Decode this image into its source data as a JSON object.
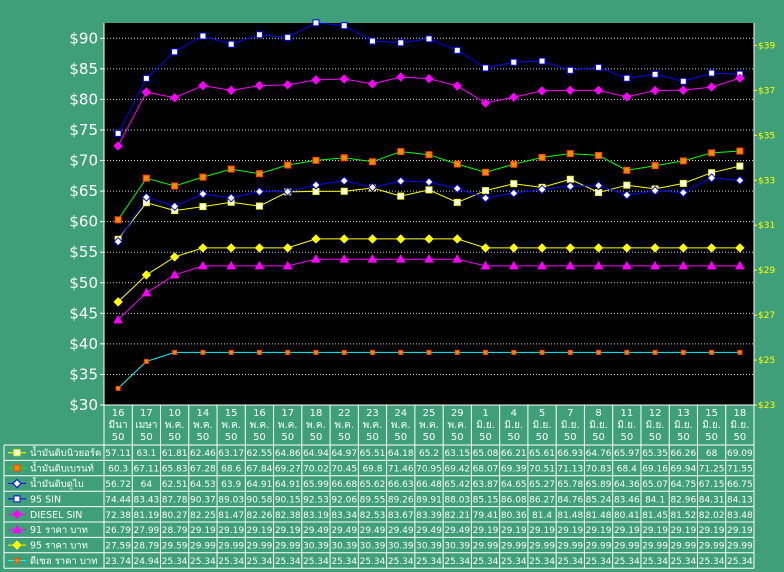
{
  "colors": {
    "background": "#3f9f78",
    "plot": "#000000",
    "grid": "#ffffff",
    "left_axis_text": "#ffffff",
    "right_axis_text": "#ffff00"
  },
  "chart_data": {
    "type": "line",
    "title": "",
    "xlabel": "",
    "ylabel": "",
    "ylim": [
      30,
      92.5
    ],
    "y_ticks": [
      "$30",
      "$35",
      "$40",
      "$45",
      "$50",
      "$55",
      "$60",
      "$65",
      "$70",
      "$75",
      "$80",
      "$85",
      "$90"
    ],
    "y2lim": [
      23,
      40
    ],
    "y2_ticks": [
      "$23",
      "$25",
      "$27",
      "$29",
      "$31",
      "$33",
      "$35",
      "$37",
      "$39"
    ],
    "grid": true,
    "legend": "bottom data table",
    "categories": [
      [
        "16",
        "มีนา",
        "50"
      ],
      [
        "17",
        "เมษา",
        "50"
      ],
      [
        "10",
        "พ.ค.",
        "50"
      ],
      [
        "14",
        "พ.ค.",
        "50"
      ],
      [
        "15",
        "พ.ค.",
        "50"
      ],
      [
        "16",
        "พ.ค.",
        "50"
      ],
      [
        "17",
        "พ.ค.",
        "50"
      ],
      [
        "18",
        "พ.ค.",
        "50"
      ],
      [
        "22",
        "พ.ค.",
        "50"
      ],
      [
        "23",
        "พ.ค.",
        "50"
      ],
      [
        "24",
        "พ.ค.",
        "50"
      ],
      [
        "25",
        "พ.ค.",
        "50"
      ],
      [
        "29",
        "พ.ค.",
        "50"
      ],
      [
        "1",
        "มิ.ย.",
        "50"
      ],
      [
        "4",
        "มิ.ย.",
        "50"
      ],
      [
        "5",
        "มิ.ย.",
        "50"
      ],
      [
        "7",
        "มิ.ย.",
        "50"
      ],
      [
        "8",
        "มิ.ย.",
        "50"
      ],
      [
        "11",
        "มิ.ย.",
        "50"
      ],
      [
        "12",
        "มิ.ย.",
        "50"
      ],
      [
        "13",
        "มิ.ย.",
        "50"
      ],
      [
        "15",
        "มิ.ย.",
        "50"
      ],
      [
        "18",
        "มิ.ย.",
        "50"
      ]
    ],
    "series": [
      {
        "name": "น้ำมันดิบนิวยอร์ค",
        "color": "#ffff00",
        "marker": "square",
        "values": [
          57.11,
          63.1,
          61.81,
          62.46,
          63.17,
          62.55,
          64.86,
          64.94,
          64.97,
          65.51,
          64.18,
          65.2,
          63.15,
          65.08,
          66.21,
          65.61,
          66.93,
          64.76,
          65.97,
          65.35,
          66.26,
          68,
          69.09
        ]
      },
      {
        "name": "น้ำมันดิบเบรนท์",
        "color": "#00ff00",
        "marker": "square",
        "values": [
          60.3,
          67.11,
          65.83,
          67.28,
          68.6,
          67.84,
          69.27,
          70.02,
          70.45,
          69.8,
          71.46,
          70.95,
          69.42,
          68.07,
          69.39,
          70.51,
          71.13,
          70.83,
          68.4,
          69.16,
          69.94,
          71.25,
          71.55
        ]
      },
      {
        "name": "น้ำมันดิบดูไบ",
        "color": "#0000ff",
        "marker": "diamond",
        "values": [
          56.72,
          64,
          62.51,
          64.53,
          63.9,
          64.91,
          64.91,
          65.99,
          66.68,
          65.62,
          66.63,
          66.48,
          65.42,
          63.87,
          64.65,
          65.27,
          65.78,
          65.89,
          64.36,
          65.07,
          64.75,
          67.15,
          66.75
        ]
      },
      {
        "name": "95 SIN",
        "color": "#0000ff",
        "marker": "square",
        "values": [
          74.44,
          83.43,
          87.78,
          90.37,
          89.03,
          90.58,
          90.15,
          92.53,
          92.06,
          89.55,
          89.26,
          89.91,
          88.03,
          85.15,
          86.08,
          86.27,
          84.76,
          85.24,
          83.46,
          84.1,
          82.96,
          84.31,
          84.13
        ]
      },
      {
        "name": "DIESEL SIN",
        "color": "#ff00ff",
        "marker": "diamond",
        "values": [
          72.38,
          81.19,
          80.27,
          82.25,
          81.47,
          82.26,
          82.38,
          83.19,
          83.34,
          82.53,
          83.67,
          83.39,
          82.21,
          79.41,
          80.36,
          81.4,
          81.48,
          81.48,
          80.41,
          81.45,
          81.52,
          82.02,
          83.48
        ]
      },
      {
        "name": "91 ราคา บาท",
        "color": "#ff00ff",
        "marker": "triangle",
        "axis": "y2",
        "values": [
          26.79,
          27.99,
          28.79,
          29.19,
          29.19,
          29.19,
          29.19,
          29.49,
          29.49,
          29.49,
          29.49,
          29.49,
          29.49,
          29.19,
          29.19,
          29.19,
          29.19,
          29.19,
          29.19,
          29.19,
          29.19,
          29.19,
          29.19
        ]
      },
      {
        "name": "95 ราคา บาท",
        "color": "#ffff00",
        "marker": "diamond",
        "axis": "y2",
        "values": [
          27.59,
          28.79,
          29.59,
          29.99,
          29.99,
          29.99,
          29.99,
          30.39,
          30.39,
          30.39,
          30.39,
          30.39,
          30.39,
          29.99,
          29.99,
          29.99,
          29.99,
          29.99,
          29.99,
          29.99,
          29.99,
          29.99,
          29.99
        ]
      },
      {
        "name": "ดีเซล ราคา บาท",
        "color": "#00ffff",
        "marker": "x",
        "axis": "y2",
        "values": [
          23.74,
          24.94,
          25.34,
          25.34,
          25.34,
          25.34,
          25.34,
          25.34,
          25.34,
          25.34,
          25.34,
          25.34,
          25.34,
          25.34,
          25.34,
          25.34,
          25.34,
          25.34,
          25.34,
          25.34,
          25.34,
          25.34,
          25.34
        ]
      }
    ]
  }
}
